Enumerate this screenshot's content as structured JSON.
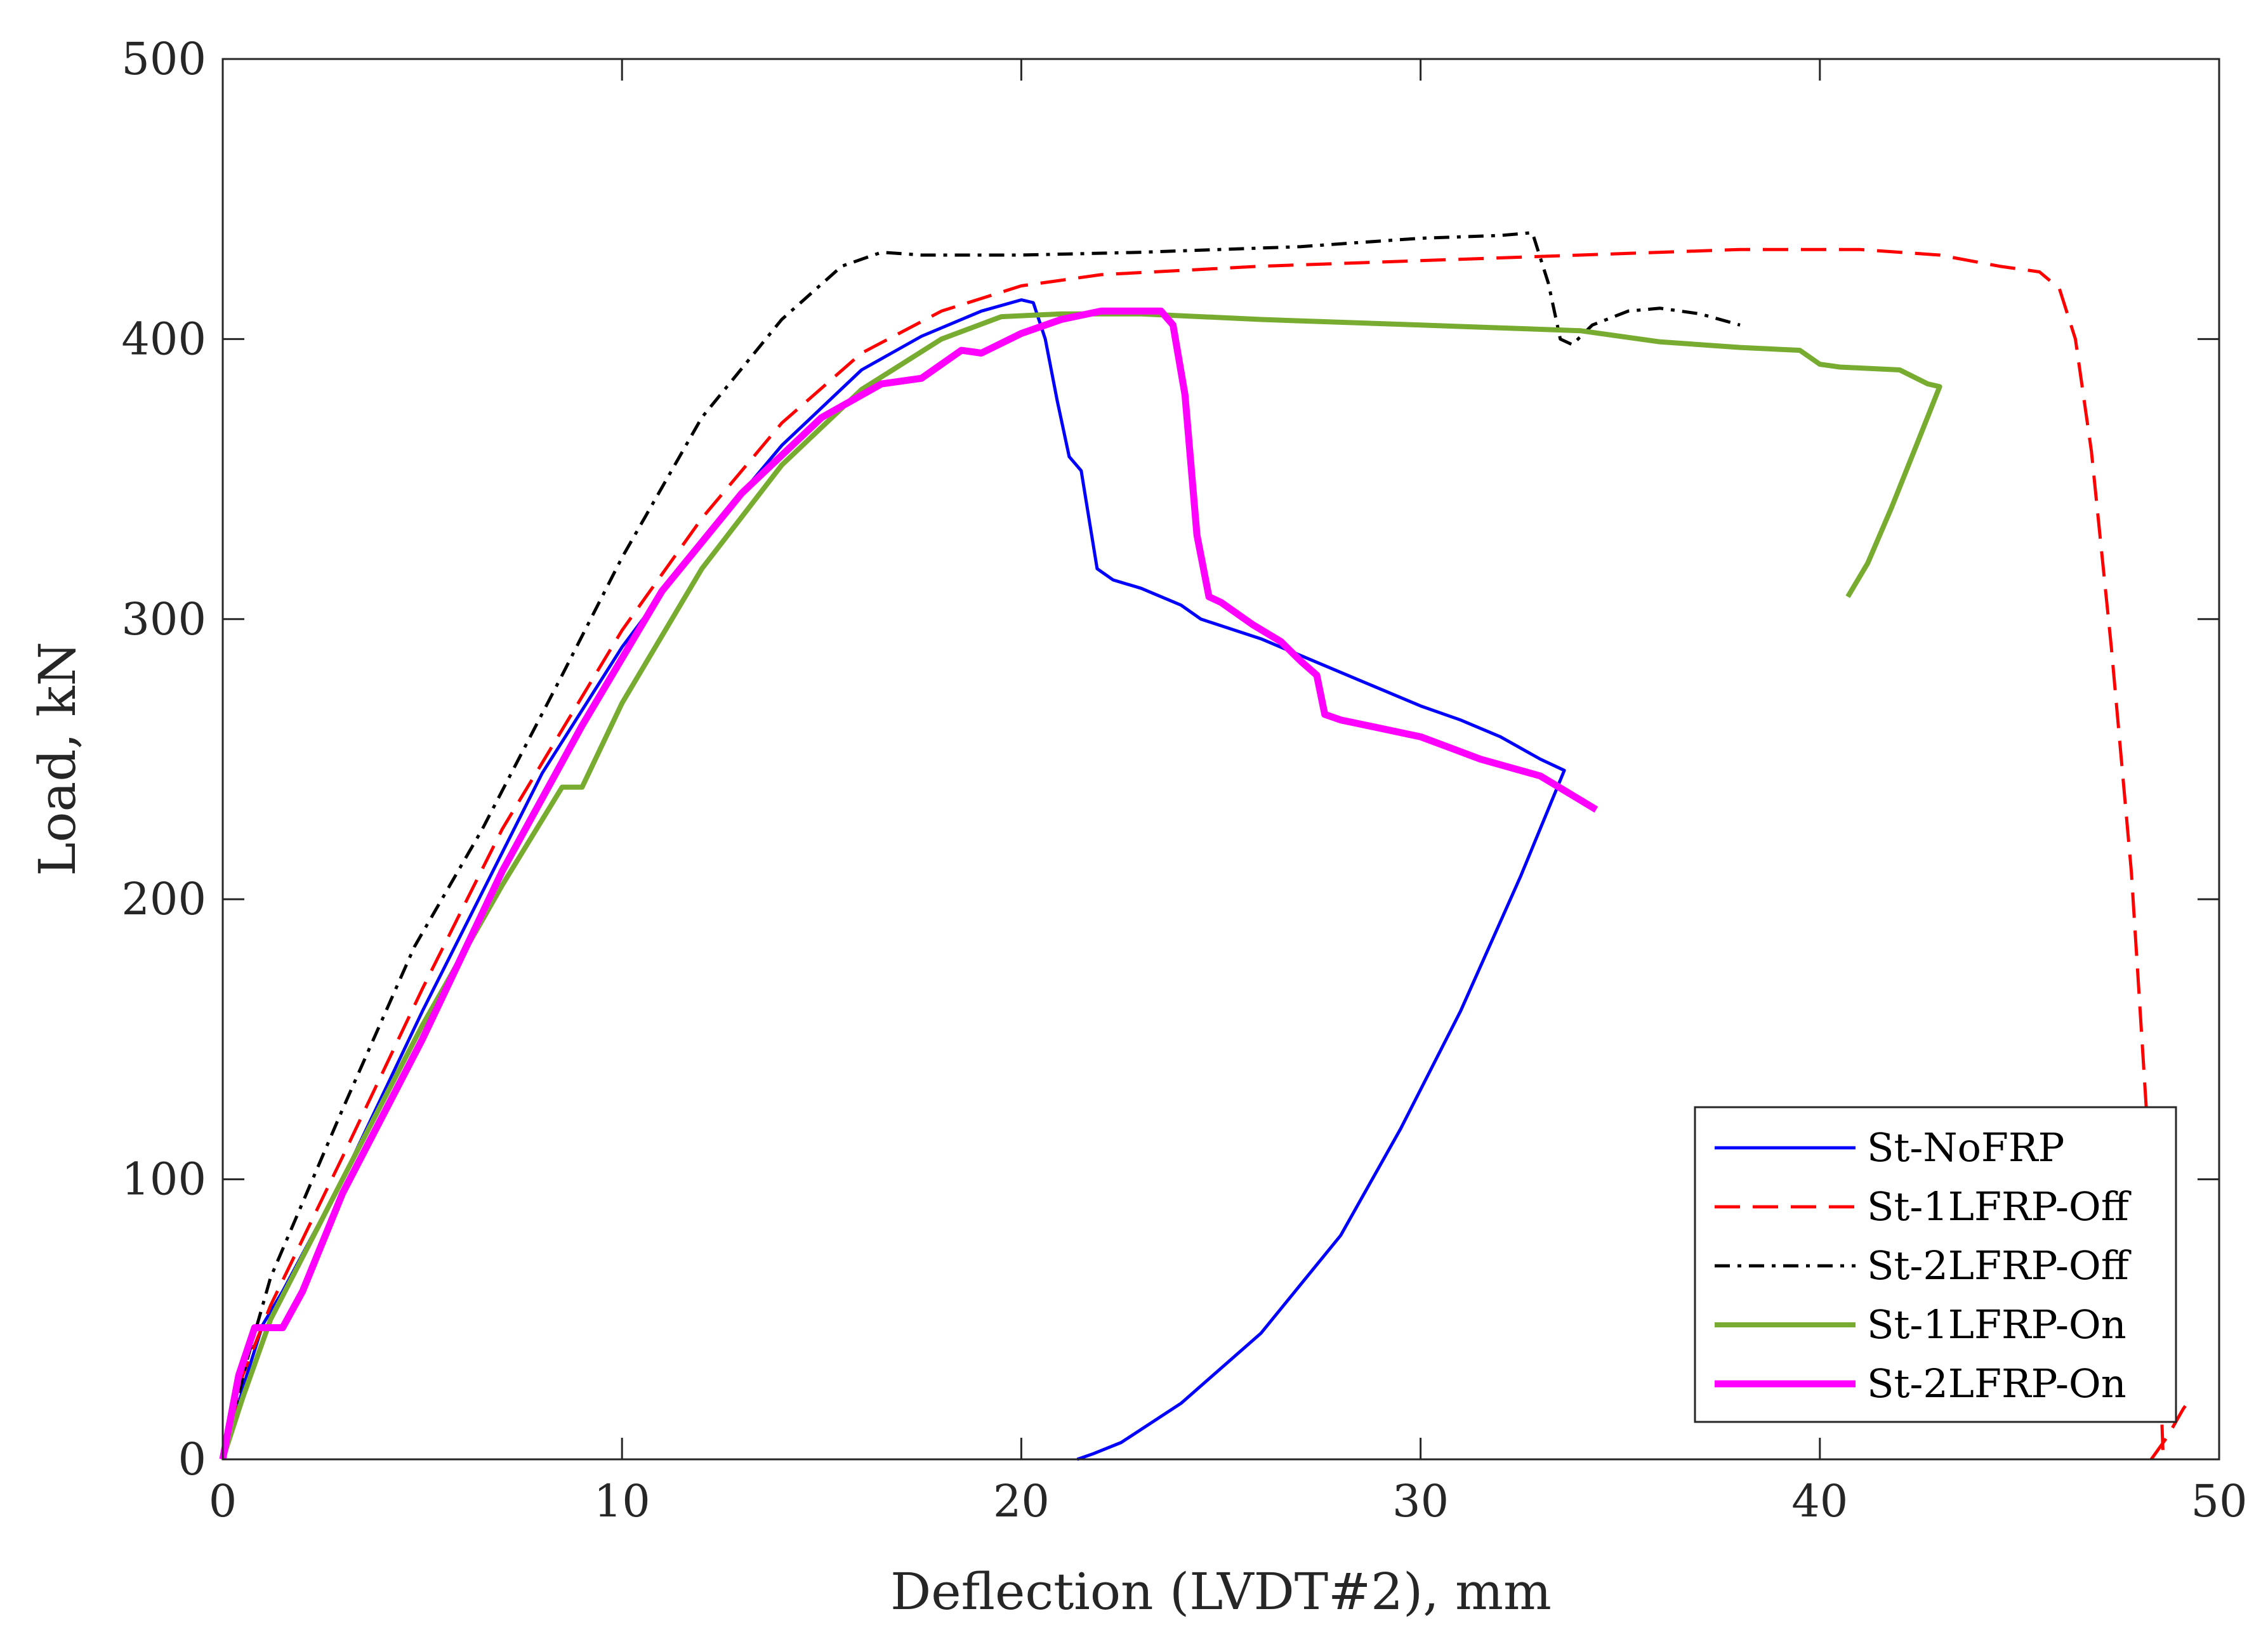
{
  "chart_data": {
    "type": "line",
    "title": "",
    "xlabel": "Deflection (LVDT#2), mm",
    "ylabel": "Load, kN",
    "xlim": [
      0,
      50
    ],
    "ylim": [
      0,
      500
    ],
    "xticks": [
      0,
      10,
      20,
      30,
      40,
      50
    ],
    "yticks": [
      0,
      100,
      200,
      300,
      400,
      500
    ],
    "xtick_labels": [
      "0",
      "10",
      "20",
      "30",
      "40",
      "50"
    ],
    "ytick_labels": [
      "0",
      "100",
      "200",
      "300",
      "400",
      "500"
    ],
    "grid": false,
    "legend_position": "bottom-right",
    "series": [
      {
        "name": "St-NoFRP",
        "color": "#0000ff",
        "dash": "solid",
        "width": "normal",
        "points": [
          [
            0,
            0
          ],
          [
            0.3,
            15
          ],
          [
            0.6,
            30
          ],
          [
            1,
            48
          ],
          [
            1.5,
            60
          ],
          [
            3,
            100
          ],
          [
            5,
            160
          ],
          [
            8,
            245
          ],
          [
            10,
            290
          ],
          [
            12,
            328
          ],
          [
            14,
            362
          ],
          [
            16,
            389
          ],
          [
            17.5,
            401
          ],
          [
            19,
            410
          ],
          [
            20,
            414
          ],
          [
            20.3,
            413
          ],
          [
            20.6,
            400
          ],
          [
            20.9,
            378
          ],
          [
            21.2,
            358
          ],
          [
            21.5,
            353
          ],
          [
            21.9,
            318
          ],
          [
            22.3,
            314
          ],
          [
            23,
            311
          ],
          [
            24,
            305
          ],
          [
            24.5,
            300
          ],
          [
            26,
            293
          ],
          [
            27,
            287
          ],
          [
            28.5,
            278
          ],
          [
            30,
            269
          ],
          [
            31,
            264
          ],
          [
            32,
            258
          ],
          [
            33,
            250
          ],
          [
            33.6,
            246
          ],
          [
            32.5,
            208
          ],
          [
            31,
            160
          ],
          [
            29.5,
            118
          ],
          [
            28,
            80
          ],
          [
            26,
            45
          ],
          [
            24,
            20
          ],
          [
            22.5,
            6
          ],
          [
            21.8,
            2
          ],
          [
            21.4,
            0
          ]
        ]
      },
      {
        "name": "St-1LFRP-Off",
        "color": "#ff0000",
        "dash": "dashed",
        "width": "normal",
        "points": [
          [
            0,
            0
          ],
          [
            0.5,
            30
          ],
          [
            1.2,
            55
          ],
          [
            3,
            108
          ],
          [
            5,
            168
          ],
          [
            7,
            225
          ],
          [
            10,
            296
          ],
          [
            12,
            336
          ],
          [
            14,
            370
          ],
          [
            16,
            395
          ],
          [
            18,
            410
          ],
          [
            20,
            419
          ],
          [
            22,
            423
          ],
          [
            26,
            426
          ],
          [
            30,
            428
          ],
          [
            34,
            430
          ],
          [
            38,
            432
          ],
          [
            41,
            432
          ],
          [
            43,
            430
          ],
          [
            44.5,
            426
          ],
          [
            45.5,
            424
          ],
          [
            46,
            418
          ],
          [
            46.4,
            400
          ],
          [
            46.8,
            360
          ],
          [
            47.3,
            290
          ],
          [
            47.8,
            210
          ],
          [
            48.2,
            120
          ],
          [
            48.5,
            40
          ],
          [
            48.6,
            0
          ]
        ]
      },
      {
        "name": "St-1LFRP-Off (tail)",
        "color": "#ff0000",
        "dash": "dashed",
        "width": "normal",
        "legend": false,
        "points": [
          [
            48.3,
            0
          ],
          [
            48.7,
            8
          ],
          [
            49.1,
            18
          ],
          [
            49.2,
            20
          ]
        ]
      },
      {
        "name": "St-2LFRP-Off",
        "color": "#000000",
        "dash": "dashdot",
        "width": "normal",
        "points": [
          [
            0,
            0
          ],
          [
            0.6,
            35
          ],
          [
            1.2,
            65
          ],
          [
            3,
            125
          ],
          [
            4.8,
            183
          ],
          [
            6.5,
            225
          ],
          [
            8.5,
            280
          ],
          [
            10,
            322
          ],
          [
            12,
            372
          ],
          [
            14,
            407
          ],
          [
            15.5,
            426
          ],
          [
            16.5,
            431
          ],
          [
            17.5,
            430
          ],
          [
            20,
            430
          ],
          [
            23,
            431
          ],
          [
            27,
            433
          ],
          [
            30,
            436
          ],
          [
            32,
            437
          ],
          [
            32.8,
            438
          ],
          [
            33.2,
            420
          ],
          [
            33.5,
            400
          ],
          [
            33.8,
            398
          ],
          [
            34.3,
            405
          ],
          [
            35.2,
            410
          ],
          [
            36,
            411
          ],
          [
            37,
            409
          ],
          [
            38,
            405
          ]
        ]
      },
      {
        "name": "St-1LFRP-On",
        "color": "#77ac30",
        "dash": "solid",
        "width": "thick",
        "points": [
          [
            0,
            0
          ],
          [
            0.5,
            22
          ],
          [
            1.2,
            50
          ],
          [
            3,
            100
          ],
          [
            5,
            155
          ],
          [
            7,
            205
          ],
          [
            8.5,
            240
          ],
          [
            9,
            240
          ],
          [
            10,
            270
          ],
          [
            12,
            318
          ],
          [
            14,
            355
          ],
          [
            16,
            382
          ],
          [
            18,
            400
          ],
          [
            19.5,
            408
          ],
          [
            21,
            409
          ],
          [
            23,
            409
          ],
          [
            26,
            407
          ],
          [
            30,
            405
          ],
          [
            34,
            403
          ],
          [
            36,
            399
          ],
          [
            38,
            397
          ],
          [
            39.5,
            396
          ],
          [
            40,
            391
          ],
          [
            40.5,
            390
          ],
          [
            42,
            389
          ],
          [
            42.7,
            384
          ],
          [
            43,
            383
          ],
          [
            42.5,
            365
          ],
          [
            41.8,
            340
          ],
          [
            41.2,
            320
          ],
          [
            40.7,
            308
          ]
        ]
      },
      {
        "name": "St-2LFRP-On",
        "color": "#ff00ff",
        "dash": "solid",
        "width": "thicker",
        "points": [
          [
            0,
            0
          ],
          [
            0.4,
            30
          ],
          [
            0.8,
            47
          ],
          [
            1.5,
            47
          ],
          [
            2,
            60
          ],
          [
            3,
            95
          ],
          [
            5,
            150
          ],
          [
            7,
            210
          ],
          [
            9,
            262
          ],
          [
            11,
            310
          ],
          [
            13,
            345
          ],
          [
            15,
            372
          ],
          [
            16.5,
            384
          ],
          [
            17.5,
            386
          ],
          [
            18.5,
            396
          ],
          [
            19,
            395
          ],
          [
            20,
            402
          ],
          [
            21,
            407
          ],
          [
            22,
            410
          ],
          [
            23.5,
            410
          ],
          [
            23.8,
            405
          ],
          [
            24.1,
            380
          ],
          [
            24.4,
            330
          ],
          [
            24.7,
            308
          ],
          [
            25,
            306
          ],
          [
            25.8,
            298
          ],
          [
            26.5,
            292
          ],
          [
            27,
            285
          ],
          [
            27.4,
            280
          ],
          [
            27.6,
            266
          ],
          [
            28,
            264
          ],
          [
            30,
            258
          ],
          [
            31.5,
            250
          ],
          [
            33,
            244
          ],
          [
            34.4,
            232
          ]
        ]
      }
    ]
  }
}
